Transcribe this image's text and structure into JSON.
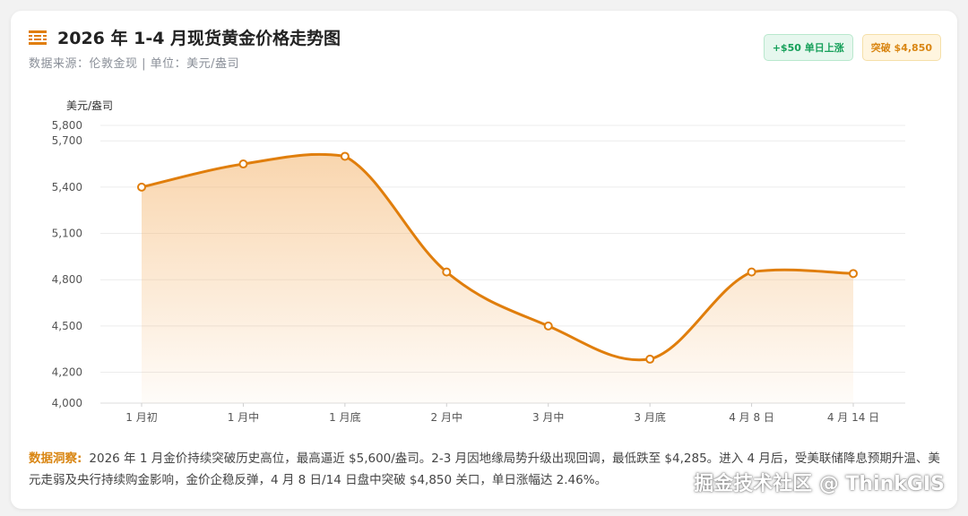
{
  "header": {
    "title": "2026 年 1-4 月现货黄金价格走势图",
    "subtitle": "数据来源：伦敦金现 | 单位：美元/盎司",
    "icon": "bars-icon"
  },
  "badges": [
    {
      "label": "+$50 单日上涨",
      "color": "#16a05a"
    },
    {
      "label": "突破 $4,850",
      "color": "#d98613"
    }
  ],
  "chart_data": {
    "type": "area",
    "ylabel": "美元/盎司",
    "categories": [
      "1 月初",
      "1 月中",
      "1 月底",
      "2 月中",
      "3 月中",
      "3 月底",
      "4 月 8 日",
      "4 月 14 日"
    ],
    "series": [
      {
        "values": [
          5400,
          5550,
          5600,
          4850,
          4500,
          4285,
          4850,
          4840
        ]
      }
    ],
    "yticks": [
      "5,800",
      "5,700",
      "5,400",
      "5,100",
      "4,800",
      "4,500",
      "4,200",
      "4,000"
    ],
    "ytick_values": [
      5800,
      5700,
      5400,
      5100,
      4800,
      4500,
      4200,
      4000
    ],
    "ylim": [
      4000,
      5800
    ],
    "grid": true,
    "line_color": "#e07e0c",
    "fill_color": "#f4b46c"
  },
  "insight": {
    "label": "数据洞察:",
    "text": "2026 年 1 月金价持续突破历史高位，最高逼近 $5,600/盎司。2-3 月因地缘局势升级出现回调，最低跌至 $4,285。进入 4 月后，受美联储降息预期升温、美元走弱及央行持续购金影响，金价企稳反弹，4 月 8 日/14 日盘中突破 $4,850 关口，单日涨幅达 2.46%。"
  },
  "watermark": "掘金技术社区 @ ThinkGIS"
}
